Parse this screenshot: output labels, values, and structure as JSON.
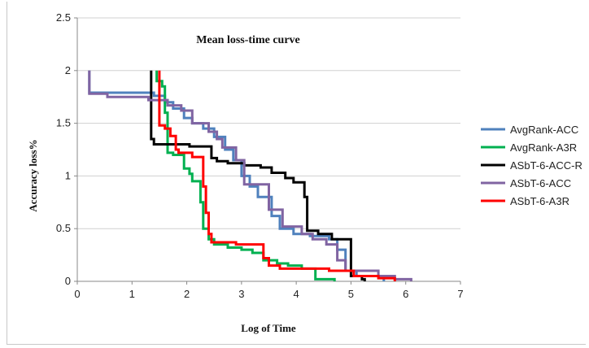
{
  "chart_data": {
    "type": "line",
    "title": "Mean loss-time curve",
    "xlabel": "Log of Time",
    "ylabel": "Accuracy loss%",
    "xlim": [
      0,
      7
    ],
    "ylim": [
      0,
      2.5
    ],
    "x_ticks": [
      0,
      1,
      2,
      3,
      4,
      5,
      6,
      7
    ],
    "y_ticks": [
      0,
      0.5,
      1,
      1.5,
      2,
      2.5
    ],
    "x_tick_labels": [
      "0",
      "1",
      "2",
      "3",
      "4",
      "5",
      "6",
      "7"
    ],
    "y_tick_labels": [
      "0",
      "0.5",
      "1",
      "1.5",
      "2",
      "2.5"
    ],
    "grid": "horizontal",
    "legend": "right",
    "series": [
      {
        "name": "AvgRank-ACC",
        "color": "#4f81bd",
        "points": [
          [
            0.22,
            2.0
          ],
          [
            0.22,
            1.79
          ],
          [
            1.4,
            1.79
          ],
          [
            1.4,
            1.76
          ],
          [
            1.6,
            1.76
          ],
          [
            1.6,
            1.7
          ],
          [
            1.75,
            1.7
          ],
          [
            1.75,
            1.64
          ],
          [
            1.95,
            1.64
          ],
          [
            1.95,
            1.55
          ],
          [
            2.1,
            1.55
          ],
          [
            2.1,
            1.5
          ],
          [
            2.3,
            1.5
          ],
          [
            2.3,
            1.45
          ],
          [
            2.5,
            1.45
          ],
          [
            2.5,
            1.37
          ],
          [
            2.7,
            1.37
          ],
          [
            2.7,
            1.25
          ],
          [
            2.85,
            1.25
          ],
          [
            2.85,
            1.15
          ],
          [
            3.0,
            1.15
          ],
          [
            3.0,
            1.0
          ],
          [
            3.15,
            1.0
          ],
          [
            3.15,
            0.9
          ],
          [
            3.3,
            0.9
          ],
          [
            3.3,
            0.8
          ],
          [
            3.55,
            0.8
          ],
          [
            3.55,
            0.62
          ],
          [
            3.7,
            0.62
          ],
          [
            3.7,
            0.5
          ],
          [
            3.95,
            0.5
          ],
          [
            3.95,
            0.45
          ],
          [
            4.25,
            0.45
          ],
          [
            4.25,
            0.43
          ],
          [
            4.6,
            0.43
          ],
          [
            4.6,
            0.4
          ],
          [
            4.75,
            0.4
          ],
          [
            4.75,
            0.3
          ],
          [
            4.9,
            0.3
          ],
          [
            4.9,
            0.1
          ],
          [
            5.1,
            0.1
          ],
          [
            5.1,
            0.05
          ],
          [
            5.6,
            0.05
          ],
          [
            5.6,
            0.0
          ]
        ]
      },
      {
        "name": "AvgRank-A3R",
        "color": "#00b050",
        "points": [
          [
            1.45,
            2.0
          ],
          [
            1.45,
            1.9
          ],
          [
            1.55,
            1.9
          ],
          [
            1.55,
            1.85
          ],
          [
            1.6,
            1.85
          ],
          [
            1.6,
            1.6
          ],
          [
            1.65,
            1.6
          ],
          [
            1.65,
            1.22
          ],
          [
            1.75,
            1.22
          ],
          [
            1.75,
            1.2
          ],
          [
            1.95,
            1.2
          ],
          [
            1.95,
            1.07
          ],
          [
            2.05,
            1.07
          ],
          [
            2.05,
            1.02
          ],
          [
            2.1,
            1.02
          ],
          [
            2.1,
            0.95
          ],
          [
            2.25,
            0.95
          ],
          [
            2.25,
            0.75
          ],
          [
            2.3,
            0.75
          ],
          [
            2.3,
            0.5
          ],
          [
            2.4,
            0.5
          ],
          [
            2.4,
            0.4
          ],
          [
            2.5,
            0.4
          ],
          [
            2.5,
            0.35
          ],
          [
            2.75,
            0.35
          ],
          [
            2.75,
            0.32
          ],
          [
            3.0,
            0.32
          ],
          [
            3.0,
            0.3
          ],
          [
            3.2,
            0.3
          ],
          [
            3.2,
            0.27
          ],
          [
            3.4,
            0.27
          ],
          [
            3.4,
            0.2
          ],
          [
            3.65,
            0.2
          ],
          [
            3.65,
            0.17
          ],
          [
            3.85,
            0.17
          ],
          [
            3.85,
            0.15
          ],
          [
            4.1,
            0.15
          ],
          [
            4.1,
            0.12
          ],
          [
            4.35,
            0.12
          ],
          [
            4.35,
            0.02
          ],
          [
            4.7,
            0.02
          ],
          [
            4.7,
            0.0
          ]
        ]
      },
      {
        "name": "ASbT-6-ACC-R",
        "color": "#000000",
        "points": [
          [
            1.35,
            2.0
          ],
          [
            1.35,
            1.35
          ],
          [
            1.4,
            1.35
          ],
          [
            1.4,
            1.3
          ],
          [
            2.05,
            1.3
          ],
          [
            2.05,
            1.28
          ],
          [
            2.45,
            1.28
          ],
          [
            2.45,
            1.17
          ],
          [
            2.55,
            1.17
          ],
          [
            2.55,
            1.14
          ],
          [
            2.75,
            1.14
          ],
          [
            2.75,
            1.12
          ],
          [
            3.05,
            1.12
          ],
          [
            3.05,
            1.1
          ],
          [
            3.35,
            1.1
          ],
          [
            3.35,
            1.08
          ],
          [
            3.55,
            1.08
          ],
          [
            3.55,
            1.03
          ],
          [
            3.8,
            1.03
          ],
          [
            3.8,
            0.98
          ],
          [
            3.95,
            0.98
          ],
          [
            3.95,
            0.94
          ],
          [
            4.15,
            0.94
          ],
          [
            4.15,
            0.8
          ],
          [
            4.2,
            0.8
          ],
          [
            4.2,
            0.48
          ],
          [
            4.4,
            0.48
          ],
          [
            4.4,
            0.45
          ],
          [
            4.65,
            0.45
          ],
          [
            4.65,
            0.4
          ],
          [
            5.0,
            0.4
          ],
          [
            5.0,
            0.05
          ],
          [
            5.2,
            0.05
          ],
          [
            5.2,
            0.02
          ],
          [
            5.25,
            0.02
          ],
          [
            5.25,
            0.0
          ]
        ]
      },
      {
        "name": "ASbT-6-ACC",
        "color": "#8064a2",
        "points": [
          [
            0.22,
            2.0
          ],
          [
            0.22,
            1.78
          ],
          [
            0.55,
            1.78
          ],
          [
            0.55,
            1.75
          ],
          [
            1.3,
            1.75
          ],
          [
            1.3,
            1.72
          ],
          [
            1.65,
            1.72
          ],
          [
            1.65,
            1.67
          ],
          [
            1.9,
            1.67
          ],
          [
            1.9,
            1.62
          ],
          [
            2.1,
            1.62
          ],
          [
            2.1,
            1.5
          ],
          [
            2.4,
            1.5
          ],
          [
            2.4,
            1.42
          ],
          [
            2.55,
            1.42
          ],
          [
            2.55,
            1.35
          ],
          [
            2.65,
            1.35
          ],
          [
            2.65,
            1.27
          ],
          [
            2.9,
            1.27
          ],
          [
            2.9,
            1.15
          ],
          [
            3.05,
            1.15
          ],
          [
            3.05,
            0.92
          ],
          [
            3.5,
            0.92
          ],
          [
            3.5,
            0.68
          ],
          [
            3.75,
            0.68
          ],
          [
            3.75,
            0.52
          ],
          [
            4.1,
            0.52
          ],
          [
            4.1,
            0.45
          ],
          [
            4.3,
            0.45
          ],
          [
            4.3,
            0.4
          ],
          [
            4.55,
            0.4
          ],
          [
            4.55,
            0.35
          ],
          [
            4.75,
            0.35
          ],
          [
            4.75,
            0.2
          ],
          [
            4.9,
            0.2
          ],
          [
            4.9,
            0.1
          ],
          [
            5.5,
            0.1
          ],
          [
            5.5,
            0.05
          ],
          [
            5.8,
            0.05
          ],
          [
            5.8,
            0.02
          ],
          [
            6.1,
            0.02
          ],
          [
            6.1,
            0.0
          ]
        ]
      },
      {
        "name": "ASbT-6-A3R",
        "color": "#ff0000",
        "points": [
          [
            1.5,
            2.0
          ],
          [
            1.5,
            1.48
          ],
          [
            1.6,
            1.48
          ],
          [
            1.6,
            1.45
          ],
          [
            1.7,
            1.45
          ],
          [
            1.7,
            1.38
          ],
          [
            1.8,
            1.38
          ],
          [
            1.8,
            1.25
          ],
          [
            1.85,
            1.25
          ],
          [
            1.85,
            1.22
          ],
          [
            2.1,
            1.22
          ],
          [
            2.1,
            1.18
          ],
          [
            2.3,
            1.18
          ],
          [
            2.3,
            0.9
          ],
          [
            2.35,
            0.9
          ],
          [
            2.35,
            0.65
          ],
          [
            2.4,
            0.65
          ],
          [
            2.4,
            0.45
          ],
          [
            2.45,
            0.45
          ],
          [
            2.45,
            0.37
          ],
          [
            2.9,
            0.37
          ],
          [
            2.9,
            0.35
          ],
          [
            3.4,
            0.35
          ],
          [
            3.4,
            0.22
          ],
          [
            3.5,
            0.22
          ],
          [
            3.5,
            0.15
          ],
          [
            3.7,
            0.15
          ],
          [
            3.7,
            0.12
          ],
          [
            4.6,
            0.12
          ],
          [
            4.6,
            0.1
          ],
          [
            5.05,
            0.1
          ],
          [
            5.05,
            0.05
          ],
          [
            5.5,
            0.05
          ],
          [
            5.5,
            0.03
          ],
          [
            5.8,
            0.03
          ],
          [
            5.8,
            0.0
          ]
        ]
      }
    ]
  }
}
